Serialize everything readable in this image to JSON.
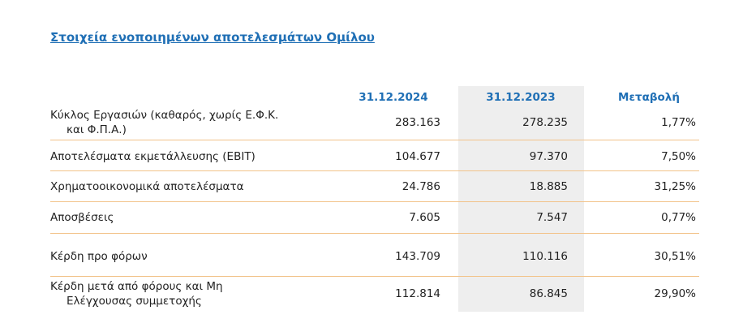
{
  "title": "Στοιχεία ενοποιημένων αποτελεσμάτων Ομίλου",
  "table": {
    "headers": [
      "31.12.2024",
      "31.12.2023",
      "Μεταβολή"
    ],
    "rows": [
      {
        "label": [
          "Κύκλος Εργασιών (καθαρός, χωρίς Ε.Φ.Κ.",
          "και Φ.Π.Α.)"
        ],
        "cells": [
          "283.163",
          "278.235",
          "1,77%"
        ]
      },
      {
        "label": [
          "Αποτελέσματα εκμετάλλευσης (EBIT)"
        ],
        "cells": [
          "104.677",
          "97.370",
          "7,50%"
        ]
      },
      {
        "label": [
          "Χρηματοοικονομικά αποτελέσματα"
        ],
        "cells": [
          "24.786",
          "18.885",
          "31,25%"
        ]
      },
      {
        "label": [
          "Αποσβέσεις"
        ],
        "cells": [
          "7.605",
          "7.547",
          "0,77%"
        ]
      },
      {
        "label": [
          "Κέρδη προ φόρων"
        ],
        "cells": [
          "143.709",
          "110.116",
          "30,51%"
        ]
      },
      {
        "label": [
          "Κέρδη μετά από φόρους και Μη",
          "Ελέγχουσας συμμετοχής"
        ],
        "cells": [
          "112.814",
          "86.845",
          "29,90%"
        ]
      }
    ]
  }
}
